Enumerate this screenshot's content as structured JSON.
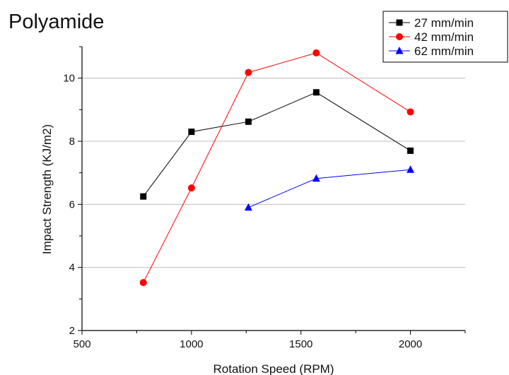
{
  "chart_data": {
    "type": "line",
    "title": "Polyamide",
    "xlabel": "Rotation Speed (RPM)",
    "ylabel": "Impact Strength (KJ/m2)",
    "xlim": [
      500,
      2250
    ],
    "ylim": [
      2,
      11
    ],
    "xticks": [
      500,
      1000,
      1500,
      2000
    ],
    "yticks": [
      2,
      4,
      6,
      8,
      10
    ],
    "grid": "horizontal",
    "legend_position": "top-right",
    "series": [
      {
        "name": "27 mm/min",
        "color": "#000000",
        "marker": "square",
        "x": [
          780,
          1000,
          1260,
          1570,
          2000
        ],
        "y": [
          6.25,
          8.3,
          8.62,
          9.55,
          7.7
        ]
      },
      {
        "name": "42 mm/min",
        "color": "#ff0000",
        "marker": "circle",
        "x": [
          780,
          1000,
          1260,
          1570,
          2000
        ],
        "y": [
          3.52,
          6.52,
          10.18,
          10.8,
          8.93
        ]
      },
      {
        "name": "62 mm/min",
        "color": "#0000ff",
        "marker": "triangle",
        "x": [
          1260,
          1570,
          2000
        ],
        "y": [
          5.9,
          6.82,
          7.1
        ]
      }
    ]
  }
}
